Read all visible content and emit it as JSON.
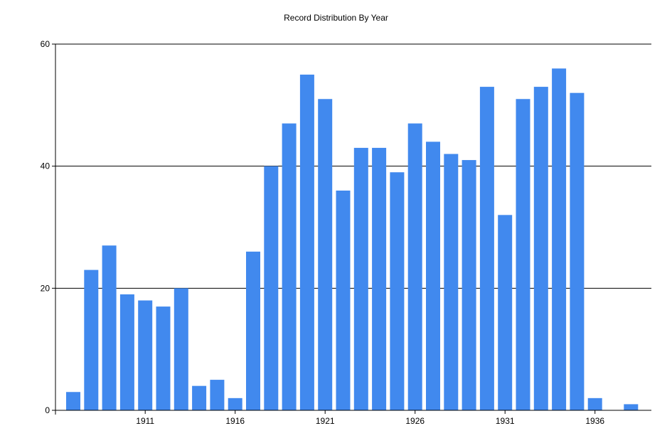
{
  "chart_data": {
    "type": "bar",
    "title": "Record Distribution By Year",
    "xlabel": "",
    "ylabel": "",
    "categories": [
      1907,
      1908,
      1909,
      1910,
      1911,
      1912,
      1913,
      1914,
      1915,
      1916,
      1917,
      1918,
      1919,
      1920,
      1921,
      1922,
      1923,
      1924,
      1925,
      1926,
      1927,
      1928,
      1929,
      1930,
      1931,
      1932,
      1933,
      1934,
      1935,
      1936,
      1937,
      1938
    ],
    "values": [
      3,
      23,
      27,
      19,
      18,
      17,
      20,
      4,
      5,
      2,
      26,
      40,
      47,
      55,
      51,
      36,
      43,
      43,
      39,
      47,
      44,
      42,
      41,
      53,
      32,
      51,
      53,
      56,
      52,
      2,
      0,
      1
    ],
    "ylim": [
      0,
      60
    ],
    "y_ticks": [
      0,
      20,
      40,
      60
    ],
    "x_ticks": [
      1911,
      1916,
      1921,
      1926,
      1931,
      1936
    ],
    "grid": "horizontal",
    "bar_color": "#4189ee"
  }
}
